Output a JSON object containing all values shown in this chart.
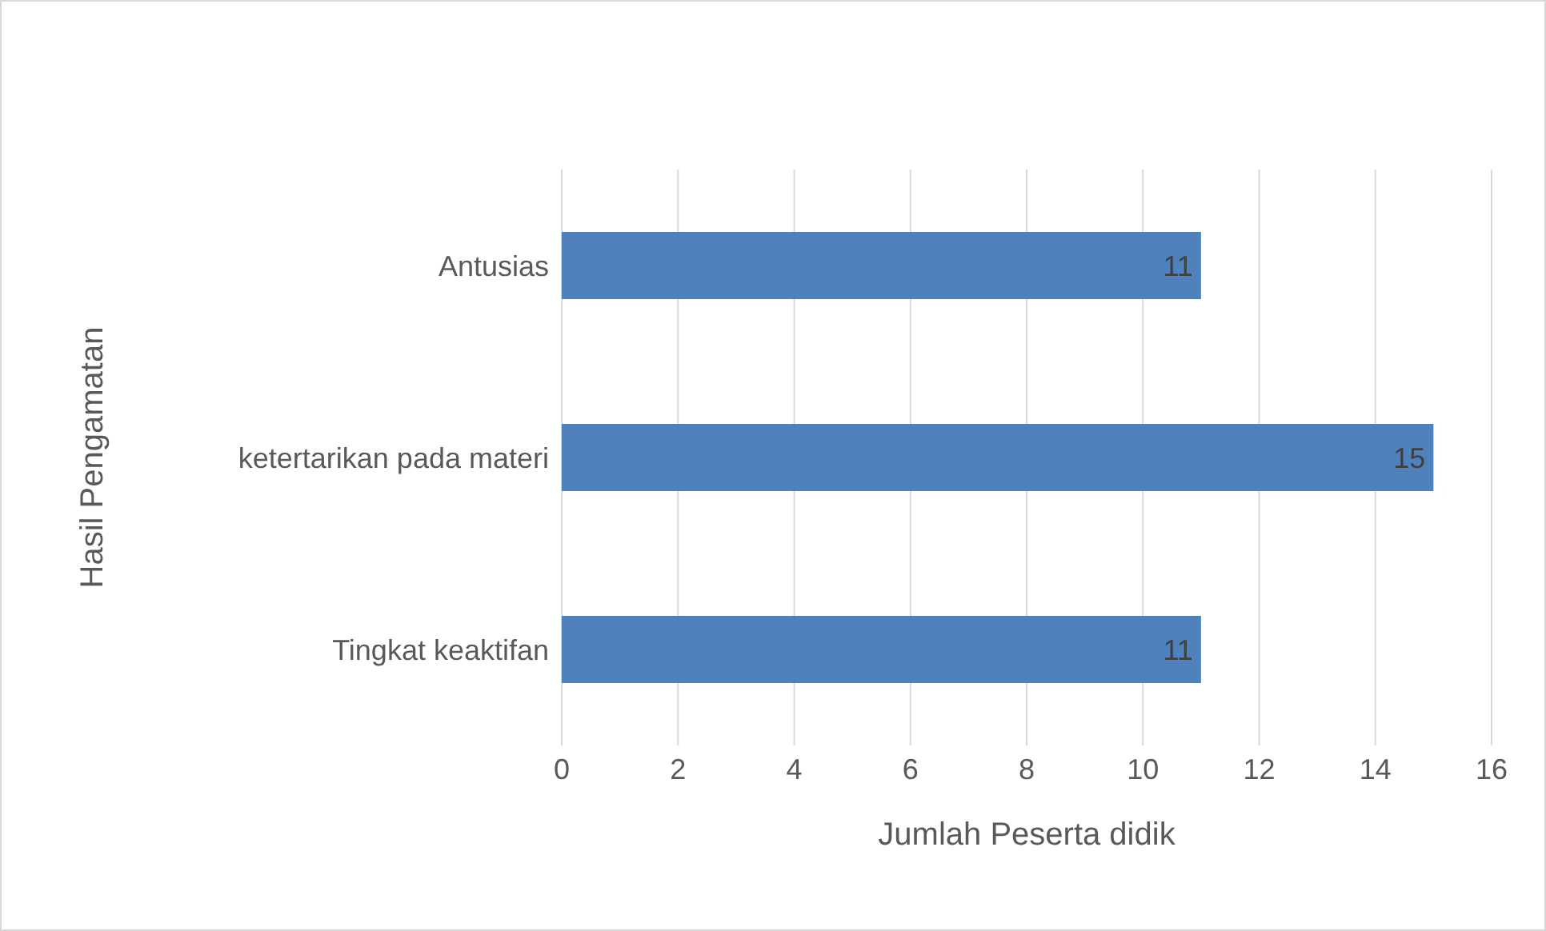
{
  "chart_data": {
    "type": "bar",
    "orientation": "horizontal",
    "categories": [
      "Antusias",
      "ketertarikan pada materi",
      "Tingkat keaktifan"
    ],
    "values": [
      11,
      15,
      11
    ],
    "color": "#4f81bd",
    "xlim": [
      0,
      16
    ],
    "xticks": [
      0,
      2,
      4,
      6,
      8,
      10,
      12,
      14,
      16
    ],
    "grid": "x",
    "data_labels": true,
    "xlabel": "Jumlah Peserta didik",
    "ylabel": "Hasil Pengamatan"
  }
}
